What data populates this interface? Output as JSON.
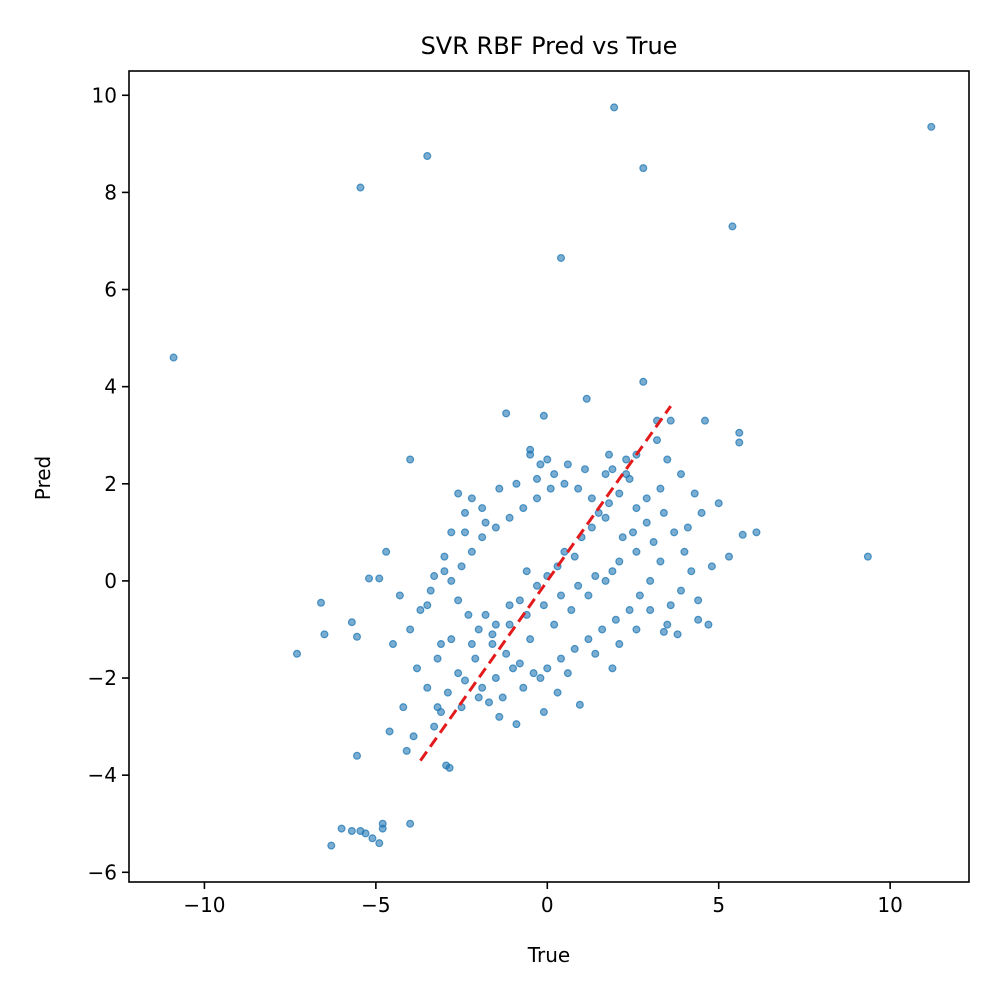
{
  "chart_data": {
    "type": "scatter",
    "title": "SVR RBF Pred vs True",
    "xlabel": "True",
    "ylabel": "Pred",
    "xlim": [
      -12.2,
      12.3
    ],
    "ylim": [
      -6.2,
      10.5
    ],
    "x_ticks": [
      {
        "value": -10,
        "label": "−10"
      },
      {
        "value": -5,
        "label": "−5"
      },
      {
        "value": 0,
        "label": "0"
      },
      {
        "value": 5,
        "label": "5"
      },
      {
        "value": 10,
        "label": "10"
      }
    ],
    "y_ticks": [
      {
        "value": -6,
        "label": "−6"
      },
      {
        "value": -4,
        "label": "−4"
      },
      {
        "value": -2,
        "label": "−2"
      },
      {
        "value": 0,
        "label": "0"
      },
      {
        "value": 2,
        "label": "2"
      },
      {
        "value": 4,
        "label": "4"
      },
      {
        "value": 6,
        "label": "6"
      },
      {
        "value": 8,
        "label": "8"
      },
      {
        "value": 10,
        "label": "10"
      }
    ],
    "grid": false,
    "legend": "none",
    "series": [
      {
        "color": "#1f77b4",
        "opacity": 0.6,
        "points": [
          [
            -10.9,
            4.6
          ],
          [
            -7.3,
            -1.5
          ],
          [
            -6.6,
            -0.45
          ],
          [
            -6.5,
            -1.1
          ],
          [
            -6.3,
            -5.45
          ],
          [
            -6.0,
            -5.1
          ],
          [
            -5.7,
            -0.85
          ],
          [
            -5.7,
            -5.15
          ],
          [
            -5.55,
            -1.15
          ],
          [
            -5.55,
            -3.6
          ],
          [
            -5.45,
            8.1
          ],
          [
            -5.45,
            -5.15
          ],
          [
            -5.3,
            -5.2
          ],
          [
            -5.1,
            -5.3
          ],
          [
            -4.9,
            -5.4
          ],
          [
            -4.8,
            -5.1
          ],
          [
            -4.8,
            -5.0
          ],
          [
            -4.6,
            -3.1
          ],
          [
            -4.5,
            -1.3
          ],
          [
            -4.9,
            0.05
          ],
          [
            -5.2,
            0.05
          ],
          [
            -4.7,
            0.6
          ],
          [
            -4.2,
            -2.6
          ],
          [
            -4.1,
            -3.5
          ],
          [
            -4.0,
            2.5
          ],
          [
            -4.0,
            -5.0
          ],
          [
            -3.9,
            -3.2
          ],
          [
            -3.5,
            8.75
          ],
          [
            -3.3,
            -3.0
          ],
          [
            -3.1,
            -2.7
          ],
          [
            -2.95,
            -3.8
          ],
          [
            -2.85,
            -3.85
          ],
          [
            -2.8,
            1.0
          ],
          [
            -3.0,
            0.5
          ],
          [
            -3.3,
            0.1
          ],
          [
            -3.5,
            -0.5
          ],
          [
            -3.2,
            -1.6
          ],
          [
            -2.9,
            -2.3
          ],
          [
            -2.6,
            1.8
          ],
          [
            -2.2,
            1.7
          ],
          [
            -1.9,
            1.5
          ],
          [
            -1.2,
            3.45
          ],
          [
            -0.5,
            2.6
          ],
          [
            -0.2,
            2.4
          ],
          [
            -0.1,
            3.4
          ],
          [
            0.0,
            2.5
          ],
          [
            0.4,
            6.65
          ],
          [
            1.15,
            3.75
          ],
          [
            1.95,
            9.75
          ],
          [
            1.9,
            2.3
          ],
          [
            2.3,
            2.2
          ],
          [
            2.8,
            4.1
          ],
          [
            2.8,
            8.5
          ],
          [
            3.2,
            3.3
          ],
          [
            3.6,
            3.3
          ],
          [
            4.6,
            3.3
          ],
          [
            5.4,
            7.3
          ],
          [
            5.6,
            3.05
          ],
          [
            5.6,
            2.85
          ],
          [
            5.0,
            1.6
          ],
          [
            5.7,
            0.95
          ],
          [
            6.1,
            1.0
          ],
          [
            4.7,
            -0.9
          ],
          [
            4.4,
            -0.8
          ],
          [
            3.8,
            -1.1
          ],
          [
            3.4,
            -1.05
          ],
          [
            9.35,
            0.5
          ],
          [
            11.2,
            9.35
          ],
          [
            0.95,
            -2.55
          ],
          [
            -0.1,
            -2.7
          ],
          [
            -0.9,
            -2.95
          ],
          [
            -1.4,
            -2.8
          ],
          [
            -1.9,
            -2.2
          ],
          [
            -2.4,
            -2.05
          ],
          [
            -2.5,
            -2.6
          ],
          [
            -2.2,
            -1.3
          ],
          [
            -1.8,
            -0.7
          ],
          [
            -1.5,
            -0.9
          ],
          [
            -1.1,
            -0.5
          ],
          [
            -0.8,
            -0.4
          ],
          [
            -0.6,
            0.2
          ],
          [
            -0.3,
            -0.1
          ],
          [
            0.0,
            0.1
          ],
          [
            0.3,
            0.3
          ],
          [
            0.5,
            0.6
          ],
          [
            0.8,
            0.5
          ],
          [
            1.0,
            0.9
          ],
          [
            1.3,
            1.1
          ],
          [
            1.5,
            1.4
          ],
          [
            1.8,
            1.6
          ],
          [
            2.1,
            1.8
          ],
          [
            2.4,
            2.1
          ],
          [
            2.6,
            1.5
          ],
          [
            2.9,
            1.2
          ],
          [
            3.1,
            0.8
          ],
          [
            3.3,
            0.4
          ],
          [
            3.0,
            0.0
          ],
          [
            2.7,
            -0.3
          ],
          [
            2.4,
            -0.6
          ],
          [
            2.0,
            -0.8
          ],
          [
            1.6,
            -1.0
          ],
          [
            1.2,
            -1.2
          ],
          [
            0.8,
            -1.4
          ],
          [
            0.4,
            -1.6
          ],
          [
            0.0,
            -1.8
          ],
          [
            -0.4,
            -1.9
          ],
          [
            -0.8,
            -1.7
          ],
          [
            -1.2,
            -1.5
          ],
          [
            -1.6,
            -1.3
          ],
          [
            -2.0,
            -1.0
          ],
          [
            -2.3,
            -0.7
          ],
          [
            -2.6,
            -0.4
          ],
          [
            -2.8,
            0.0
          ],
          [
            -2.5,
            0.3
          ],
          [
            -2.2,
            0.6
          ],
          [
            -1.9,
            0.9
          ],
          [
            -1.5,
            1.1
          ],
          [
            -1.1,
            1.3
          ],
          [
            -0.7,
            1.5
          ],
          [
            -0.3,
            1.7
          ],
          [
            0.1,
            1.9
          ],
          [
            0.5,
            2.0
          ],
          [
            0.9,
            1.9
          ],
          [
            1.3,
            1.7
          ],
          [
            1.7,
            1.3
          ],
          [
            2.2,
            0.9
          ],
          [
            2.6,
            0.6
          ],
          [
            1.9,
            0.2
          ],
          [
            1.4,
            0.1
          ],
          [
            0.9,
            -0.1
          ],
          [
            0.4,
            -0.3
          ],
          [
            -0.1,
            -0.5
          ],
          [
            -0.6,
            -0.7
          ],
          [
            -1.1,
            -0.9
          ],
          [
            -1.6,
            -1.1
          ],
          [
            -2.1,
            -1.6
          ],
          [
            -2.6,
            -1.9
          ],
          [
            -2.0,
            -2.4
          ],
          [
            -1.5,
            -2.0
          ],
          [
            -1.0,
            -1.8
          ],
          [
            -0.5,
            -1.2
          ],
          [
            0.2,
            -0.9
          ],
          [
            0.7,
            -0.6
          ],
          [
            1.2,
            -0.3
          ],
          [
            1.7,
            0.0
          ],
          [
            2.1,
            0.4
          ],
          [
            2.5,
            1.0
          ],
          [
            2.9,
            1.7
          ],
          [
            3.4,
            1.4
          ],
          [
            3.7,
            1.0
          ],
          [
            4.0,
            0.6
          ],
          [
            4.2,
            0.2
          ],
          [
            3.9,
            -0.2
          ],
          [
            3.6,
            -0.5
          ],
          [
            4.5,
            1.4
          ],
          [
            4.3,
            1.8
          ],
          [
            3.9,
            2.2
          ],
          [
            3.5,
            2.5
          ],
          [
            3.2,
            2.9
          ],
          [
            2.6,
            2.6
          ],
          [
            2.3,
            2.5
          ],
          [
            1.7,
            2.2
          ],
          [
            1.1,
            2.3
          ],
          [
            0.6,
            2.4
          ],
          [
            0.2,
            2.2
          ],
          [
            -0.3,
            2.1
          ],
          [
            -0.9,
            2.0
          ],
          [
            -1.4,
            1.9
          ],
          [
            -1.8,
            1.2
          ],
          [
            -2.4,
            1.0
          ],
          [
            -3.0,
            0.2
          ],
          [
            -3.4,
            -0.2
          ],
          [
            -3.7,
            -0.6
          ],
          [
            -4.0,
            -1.0
          ],
          [
            -4.3,
            -0.3
          ],
          [
            -3.8,
            -1.8
          ],
          [
            -3.5,
            -2.2
          ],
          [
            -3.2,
            -2.6
          ],
          [
            -2.8,
            -1.2
          ],
          [
            -1.3,
            -2.4
          ],
          [
            -0.7,
            -2.2
          ],
          [
            -0.2,
            -2.0
          ],
          [
            0.6,
            -1.9
          ],
          [
            1.4,
            -1.5
          ],
          [
            2.1,
            -1.3
          ],
          [
            2.6,
            -1.0
          ],
          [
            3.0,
            -0.6
          ],
          [
            4.8,
            0.3
          ],
          [
            5.3,
            0.5
          ],
          [
            4.1,
            1.1
          ],
          [
            3.3,
            1.9
          ],
          [
            1.8,
            2.6
          ],
          [
            -0.5,
            2.7
          ],
          [
            -2.4,
            1.4
          ],
          [
            -3.1,
            -1.3
          ],
          [
            -1.7,
            -2.5
          ],
          [
            0.3,
            -2.3
          ],
          [
            1.9,
            -1.8
          ],
          [
            3.5,
            -0.9
          ],
          [
            4.4,
            -0.4
          ]
        ]
      }
    ],
    "reference_line": {
      "color": "#e31a1c",
      "style": "dashed",
      "from": [
        -3.7,
        -3.7
      ],
      "to": [
        3.6,
        3.6
      ]
    }
  }
}
